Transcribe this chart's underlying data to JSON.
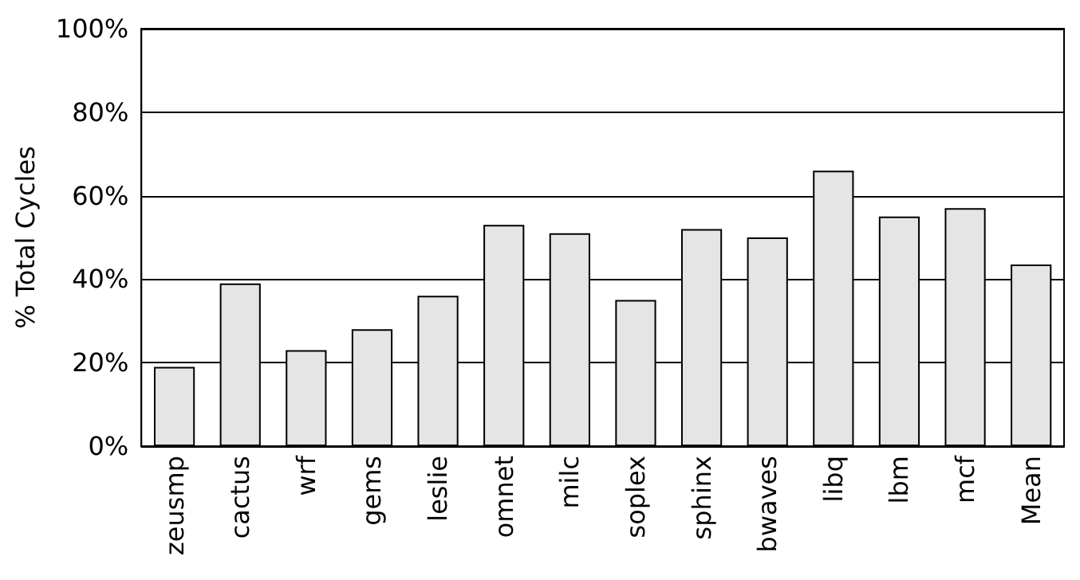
{
  "chart_data": {
    "type": "bar",
    "ylabel": "% Total Cycles",
    "categories": [
      "zeusmp",
      "cactus",
      "wrf",
      "gems",
      "leslie",
      "omnet",
      "milc",
      "soplex",
      "sphinx",
      "bwaves",
      "libq",
      "lbm",
      "mcf",
      "Mean"
    ],
    "values": [
      19,
      39,
      23,
      28,
      36,
      53,
      51,
      35,
      52,
      50,
      66,
      55,
      57,
      43.5
    ],
    "color": "#e5e5e5",
    "ylim": [
      0,
      100
    ],
    "yticks": [
      {
        "value": 0,
        "label": "0%"
      },
      {
        "value": 20,
        "label": "20%"
      },
      {
        "value": 40,
        "label": "40%"
      },
      {
        "value": 60,
        "label": "60%"
      },
      {
        "value": 80,
        "label": "80%"
      },
      {
        "value": 100,
        "label": "100%"
      }
    ],
    "grid": "y"
  }
}
